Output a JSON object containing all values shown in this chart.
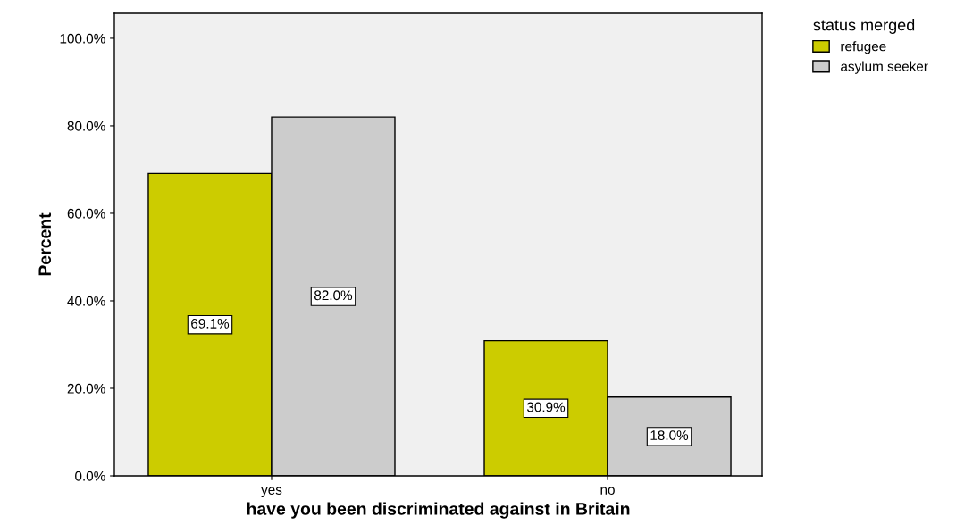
{
  "chart_data": {
    "type": "bar",
    "xlabel": "have you been discriminated against in Britain",
    "ylabel": "Percent",
    "legend_title": "status merged",
    "categories": [
      "yes",
      "no"
    ],
    "series": [
      {
        "name": "refugee",
        "color": "#cccc00",
        "values": [
          69.1,
          30.9
        ],
        "value_labels": [
          "69.1%",
          "30.9%"
        ]
      },
      {
        "name": "asylum seeker",
        "color": "#cccccc",
        "values": [
          82.0,
          18.0
        ],
        "value_labels": [
          "82.0%",
          "18.0%"
        ]
      }
    ],
    "ylim": [
      0,
      105.7
    ],
    "yticks": [
      {
        "value": 0,
        "label": "0.0%"
      },
      {
        "value": 20,
        "label": "20.0%"
      },
      {
        "value": 40,
        "label": "40.0%"
      },
      {
        "value": 60,
        "label": "60.0%"
      },
      {
        "value": 80,
        "label": "80.0%"
      },
      {
        "value": 100,
        "label": "100.0%"
      }
    ],
    "grid": false,
    "legend": "top right"
  }
}
